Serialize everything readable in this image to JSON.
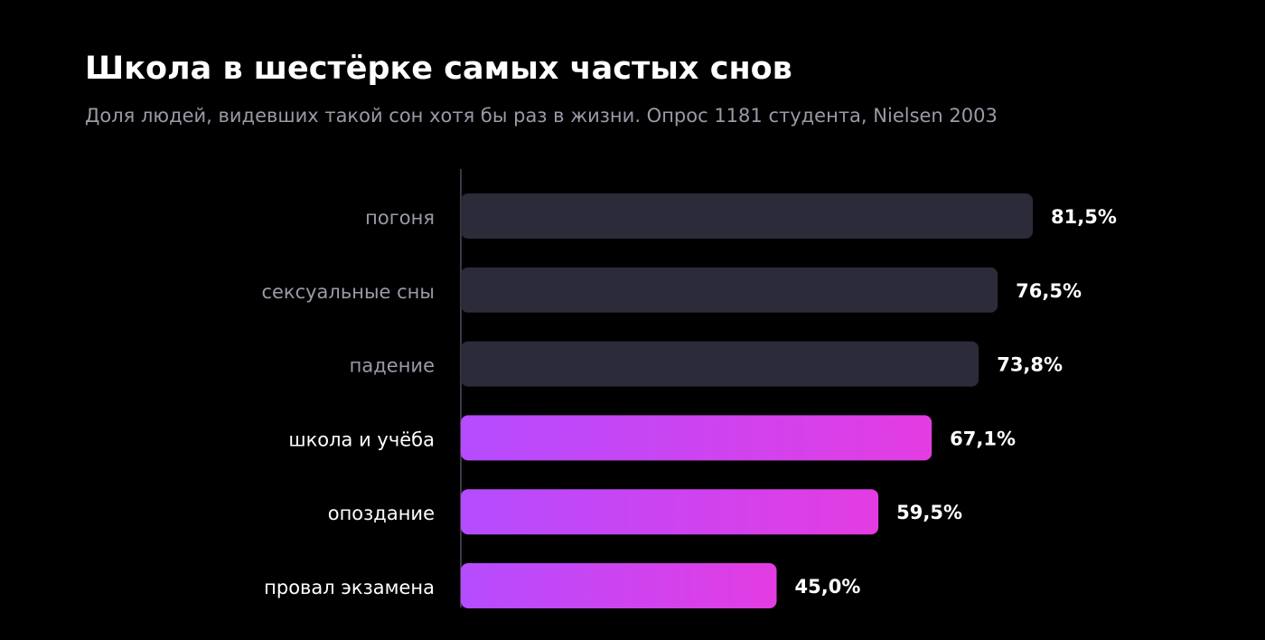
{
  "chart_data": {
    "type": "barh",
    "title": "Школа в шестёрке самых частых снов",
    "subtitle": "Доля людей, видевших такой сон хотя бы раз в жизни. Опрос 1181 студента, Nielsen 2003",
    "categories": [
      "погоня",
      "сексуальные сны",
      "падение",
      "школа и учёба",
      "опоздание",
      "провал экзамена"
    ],
    "values": [
      81.5,
      76.5,
      73.8,
      67.1,
      59.5,
      45.0
    ],
    "value_labels": [
      "81,5%",
      "76,5%",
      "73,8%",
      "67,1%",
      "59,5%",
      "45,0%"
    ],
    "highlight": [
      false,
      false,
      false,
      true,
      true,
      true
    ],
    "color": "#2c2b3a",
    "highlight_colors": [
      "#b54cff",
      "#e33ce2"
    ],
    "xlim": [
      0,
      100
    ]
  }
}
